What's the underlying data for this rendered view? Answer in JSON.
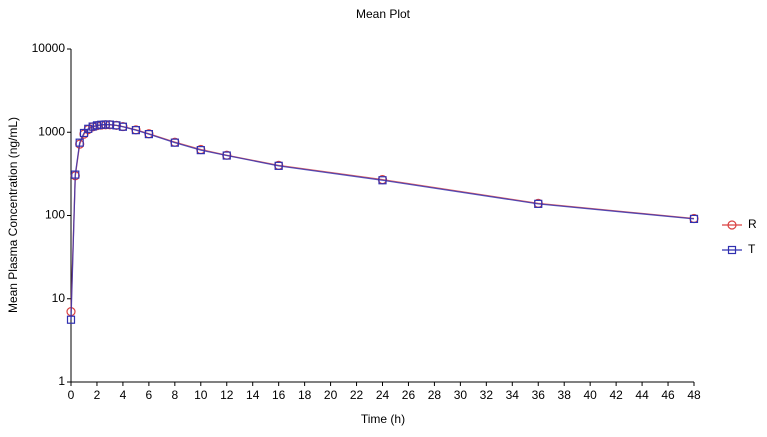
{
  "chart_data": {
    "type": "line",
    "title": "Mean Plot",
    "x_label": "Time (h)",
    "y_label": "Mean Plasma Concentration (ng/mL)",
    "x": [
      0,
      0.33,
      0.67,
      1,
      1.33,
      1.67,
      2,
      2.33,
      2.67,
      3,
      3.5,
      4,
      5,
      6,
      8,
      10,
      12,
      16,
      24,
      36,
      48
    ],
    "series": [
      {
        "name": "R",
        "color": "#d94040",
        "marker": "circle",
        "values": [
          7,
          300,
          720,
          950,
          1080,
          1160,
          1200,
          1220,
          1230,
          1230,
          1210,
          1170,
          1070,
          960,
          760,
          620,
          530,
          400,
          270,
          140,
          92
        ]
      },
      {
        "name": "T",
        "color": "#3030b0",
        "marker": "square",
        "values": [
          5.6,
          310,
          750,
          980,
          1100,
          1170,
          1210,
          1230,
          1240,
          1235,
          1210,
          1165,
          1060,
          950,
          750,
          610,
          525,
          395,
          265,
          138,
          91
        ]
      }
    ],
    "log_y": true,
    "xlim": [
      0,
      48
    ],
    "xticks": [
      0,
      2,
      4,
      6,
      8,
      10,
      12,
      14,
      16,
      18,
      20,
      22,
      24,
      26,
      28,
      30,
      32,
      34,
      36,
      38,
      40,
      42,
      44,
      46,
      48
    ],
    "ylim": [
      1,
      10000
    ],
    "yticks": [
      1,
      10,
      100,
      1000,
      10000
    ],
    "legend": "right"
  }
}
